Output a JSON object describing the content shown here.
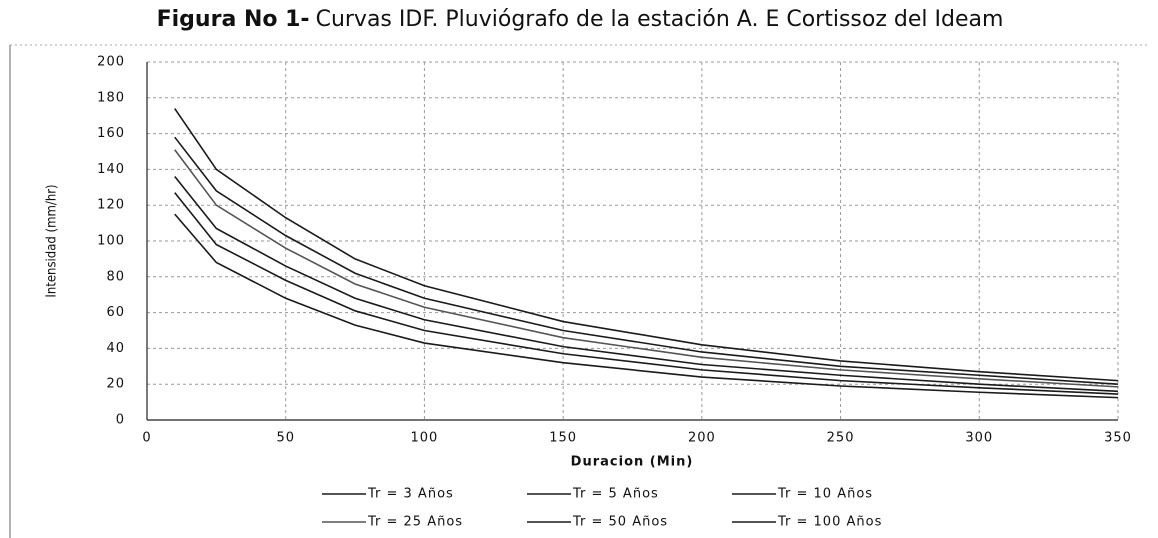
{
  "chart_data": {
    "type": "line",
    "title_bold": "Figura No 1-",
    "title": "Curvas IDF. Pluviógrafo de la estación A. E Cortissoz del Ideam",
    "x_label": "Duracion (Min)",
    "y_label": "Intensidad (mm/hr)",
    "x": [
      10,
      25,
      50,
      75,
      100,
      150,
      200,
      250,
      300,
      350
    ],
    "series": [
      {
        "name": "Tr = 3 Años",
        "color": "#1a1a1a",
        "values": [
          115,
          88,
          68,
          53,
          43,
          32,
          24,
          19,
          15.5,
          12.5
        ]
      },
      {
        "name": "Tr = 5 Años",
        "color": "#1a1a1a",
        "values": [
          127,
          98,
          78,
          61,
          50,
          37,
          28,
          22,
          18,
          14.5
        ]
      },
      {
        "name": "Tr = 10 Años",
        "color": "#1a1a1a",
        "values": [
          136,
          107,
          86,
          68,
          56,
          41,
          31,
          25,
          20,
          16
        ]
      },
      {
        "name": "Tr = 25 Años",
        "color": "#555555",
        "values": [
          151,
          120,
          96,
          76,
          63,
          46,
          35,
          28,
          23,
          18.5
        ]
      },
      {
        "name": "Tr = 50 Años",
        "color": "#1a1a1a",
        "values": [
          158,
          128,
          103,
          82,
          68,
          50,
          38,
          30,
          25,
          20
        ]
      },
      {
        "name": "Tr = 100 Años",
        "color": "#1a1a1a",
        "values": [
          174,
          140,
          113,
          90,
          75,
          55,
          42,
          33,
          27,
          22
        ]
      }
    ],
    "xlim": [
      0,
      350
    ],
    "xticks": [
      0,
      50,
      100,
      150,
      200,
      250,
      300,
      350
    ],
    "ylim": [
      0,
      200
    ],
    "yticks": [
      0,
      20,
      40,
      60,
      80,
      100,
      120,
      140,
      160,
      180,
      200
    ],
    "grid": true,
    "legend": "bottom"
  }
}
